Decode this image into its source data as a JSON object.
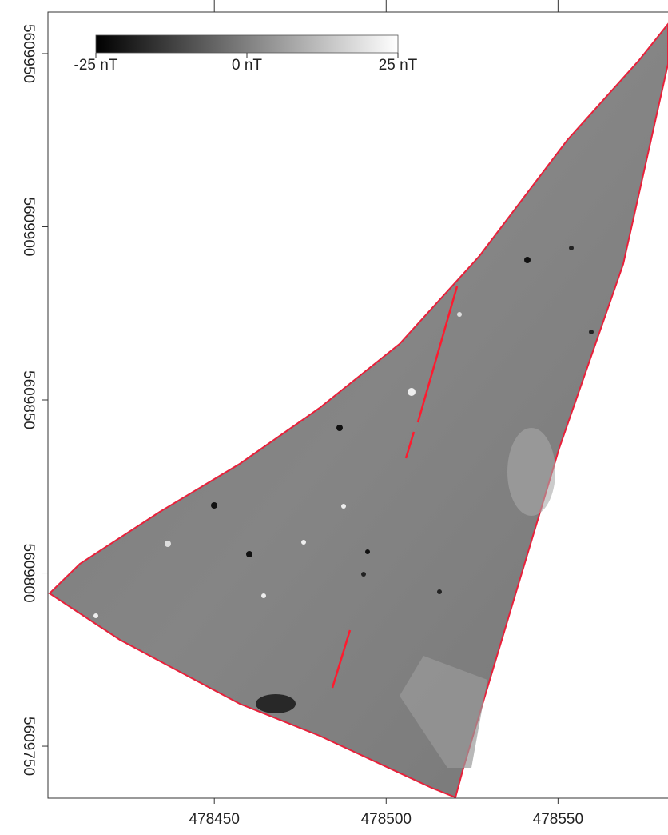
{
  "map": {
    "xlim": [
      478401.6,
      478582
    ],
    "ylim": [
      5609735,
      5609962
    ],
    "xticks": [
      478450,
      478500,
      478550
    ],
    "yticks": [
      5609950,
      5609900,
      5609850,
      5609800,
      5609750
    ],
    "colorbar": {
      "ticks": [
        {
          "value": -25,
          "label": "-25 nT"
        },
        {
          "value": 0,
          "label": "0 nT"
        },
        {
          "value": 25,
          "label": "25 nT"
        }
      ]
    }
  }
}
